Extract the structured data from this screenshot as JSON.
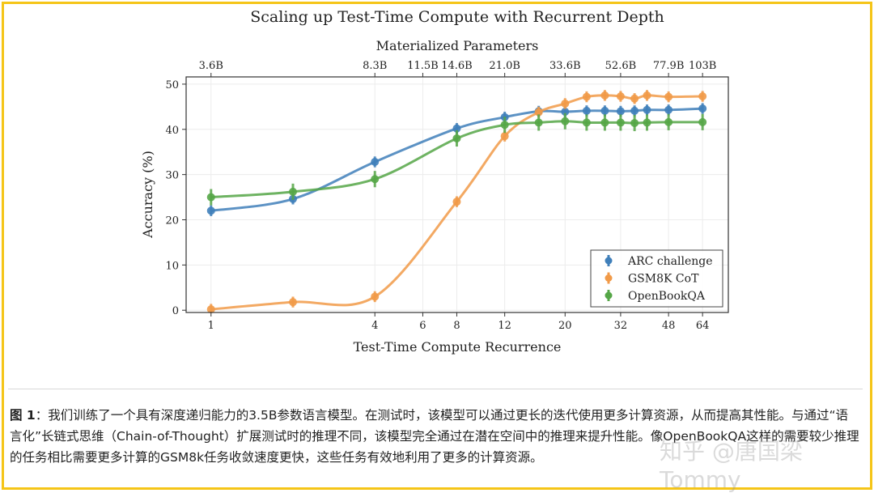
{
  "chart_data": {
    "type": "line",
    "title": "Scaling up Test-Time Compute with Recurrent Depth",
    "xlabel": "Test-Time Compute Recurrence",
    "ylabel": "Accuracy (%)",
    "top_xlabel": "Materialized Parameters",
    "x_scale": "log",
    "xlim": [
      0.81,
      79.6
    ],
    "ylim": [
      -0.5,
      51.6
    ],
    "grid": true,
    "legend_position": "bottom-right",
    "x_ticks": [
      1,
      4,
      6,
      8,
      12,
      20,
      32,
      48,
      64
    ],
    "x_tick_labels": [
      "1",
      "4",
      "6",
      "8",
      "12",
      "20",
      "32",
      "48",
      "64"
    ],
    "y_ticks": [
      0,
      10,
      20,
      30,
      40,
      50
    ],
    "y_tick_labels": [
      "0",
      "10",
      "20",
      "30",
      "40",
      "50"
    ],
    "top_ticks": [
      1,
      4,
      6,
      8,
      12,
      20,
      32,
      48,
      64
    ],
    "top_tick_labels": [
      "3.6B",
      "8.3B",
      "11.5B",
      "14.6B",
      "21.0B",
      "33.6B",
      "52.6B",
      "77.9B",
      "103B"
    ],
    "x": [
      1,
      2,
      4,
      8,
      12,
      16,
      20,
      24,
      28,
      32,
      36,
      40,
      48,
      64
    ],
    "series": [
      {
        "name": "ARC challenge",
        "color": "#3f7fba",
        "error": 1.2,
        "values": [
          22.0,
          24.6,
          32.8,
          40.2,
          42.7,
          44.0,
          43.9,
          44.1,
          44.1,
          44.0,
          44.1,
          44.3,
          44.3,
          44.6
        ]
      },
      {
        "name": "GSM8K CoT",
        "color": "#f19a48",
        "error": 1.2,
        "values": [
          0.2,
          1.8,
          3.0,
          24.0,
          38.5,
          43.8,
          45.7,
          47.2,
          47.5,
          47.3,
          46.8,
          47.5,
          47.2,
          47.3
        ]
      },
      {
        "name": "OpenBookQA",
        "color": "#55a647",
        "error": 1.8,
        "values": [
          25.0,
          26.2,
          29.0,
          38.0,
          41.0,
          41.5,
          41.8,
          41.5,
          41.5,
          41.5,
          41.4,
          41.5,
          41.6,
          41.6
        ]
      }
    ]
  },
  "caption": {
    "label": "图 1",
    "text": "：我们训练了一个具有深度递归能力的3.5B参数语言模型。在测试时，该模型可以通过更长的迭代使用更多计算资源，从而提高其性能。与通过“语言化”长链式思维（Chain-of-Thought）扩展测试时的推理不同，该模型完全通过在潜在空间中的推理来提升性能。像OpenBookQA这样的需要较少推理的任务相比需要更多计算的GSM8k任务收敛速度更快，这些任务有效地利用了更多的计算资源。"
  },
  "watermark": "知乎 @唐国梁Tommy",
  "colors": {
    "border": "#f5c518"
  }
}
